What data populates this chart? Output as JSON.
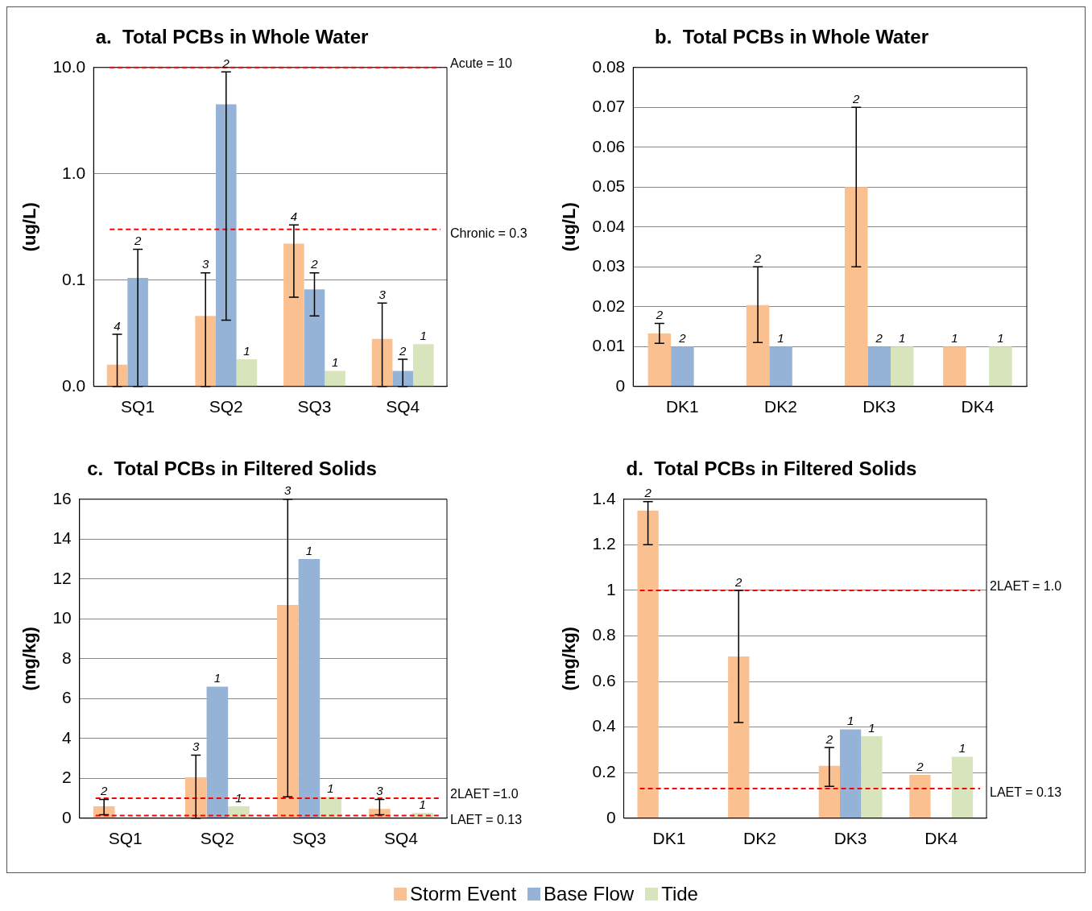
{
  "chart_data": [
    {
      "type": "bar",
      "title": "a.  Total PCBs in Whole Water",
      "ylabel": "(ug/L)",
      "categories": [
        "SQ1",
        "SQ2",
        "SQ3",
        "SQ4"
      ],
      "log": "y",
      "ylim": [
        0.01,
        10
      ],
      "yticks": [
        {
          "value": 0.01,
          "label": "0.0"
        },
        {
          "value": 0.1,
          "label": "0.1"
        },
        {
          "value": 1,
          "label": "1.0"
        },
        {
          "value": 10,
          "label": "10.0"
        }
      ],
      "grid": "y",
      "series": [
        {
          "color": "#fac090",
          "values": [
            0.016,
            0.046,
            0.22,
            0.028
          ],
          "errors": [
            [
              0.01,
              0.031
            ],
            [
              0.01,
              0.117
            ],
            [
              0.069,
              0.33
            ],
            [
              0.01,
              0.061
            ]
          ]
        },
        {
          "color": "#95b3d7",
          "values": [
            0.105,
            4.5,
            0.082,
            0.014
          ],
          "errors": [
            [
              0.01,
              0.195
            ],
            [
              0.042,
              9.1
            ],
            [
              0.046,
              0.117
            ],
            [
              0.01,
              0.018
            ]
          ]
        },
        {
          "color": "#d7e4bc",
          "values": [
            null,
            0.018,
            0.014,
            0.025
          ]
        }
      ],
      "annotations": [
        "4",
        "2",
        "3",
        "2",
        "1",
        "4",
        "2",
        "1",
        "3",
        "2",
        "1"
      ],
      "ref_lines": [
        {
          "axis": "y",
          "value": 10,
          "label": "Acute = 10",
          "color": "#ff0000",
          "line_style": "dashed"
        },
        {
          "axis": "y",
          "value": 0.3,
          "label": "Chronic = 0.3",
          "color": "#ff0000",
          "line_style": "dashed"
        }
      ]
    },
    {
      "type": "bar",
      "title": "b.  Total PCBs in Whole Water",
      "ylabel": "(ug/L)",
      "categories": [
        "DK1",
        "DK2",
        "DK3",
        "DK4"
      ],
      "ylim": [
        0,
        0.08
      ],
      "yticks": [
        0,
        0.01,
        0.02,
        0.03,
        0.04,
        0.05,
        0.06,
        0.07,
        0.08
      ],
      "grid": "y",
      "series": [
        {
          "color": "#fac090",
          "values": [
            0.0133,
            0.0204,
            0.05,
            0.01
          ],
          "errors": [
            [
              0.0108,
              0.0158
            ],
            [
              0.011,
              0.03
            ],
            [
              0.03,
              0.07
            ],
            null
          ]
        },
        {
          "color": "#95b3d7",
          "values": [
            0.01,
            0.01,
            0.01,
            null
          ]
        },
        {
          "color": "#d7e4bc",
          "values": [
            null,
            null,
            0.01,
            0.01
          ]
        }
      ],
      "annotations": [
        "2",
        "2",
        "2",
        "1",
        "2",
        "2",
        "1",
        "1",
        "1"
      ]
    },
    {
      "type": "bar",
      "title": "c.  Total PCBs in Filtered Solids",
      "ylabel": "(mg/kg)",
      "categories": [
        "SQ1",
        "SQ2",
        "SQ3",
        "SQ4"
      ],
      "ylim": [
        0,
        16
      ],
      "yticks": [
        0,
        2,
        4,
        6,
        8,
        10,
        12,
        14,
        16
      ],
      "grid": "y",
      "series": [
        {
          "color": "#fac090",
          "values": [
            0.6,
            2.05,
            10.7,
            0.47
          ],
          "errors": [
            [
              0.17,
              0.94
            ],
            [
              0,
              3.16
            ],
            [
              1.07,
              16
            ],
            [
              0.17,
              0.94
            ]
          ]
        },
        {
          "color": "#95b3d7",
          "values": [
            null,
            6.6,
            13,
            null
          ]
        },
        {
          "color": "#d7e4bc",
          "values": [
            null,
            0.6,
            1.07,
            0.26
          ]
        }
      ],
      "annotations": [
        "2",
        "3",
        "1",
        "1",
        "3",
        "1",
        "1",
        "3",
        "1"
      ],
      "ref_lines": [
        {
          "axis": "y",
          "value": 1,
          "label": "2LAET =1.0",
          "color": "#ff0000",
          "line_style": "dashed"
        },
        {
          "axis": "y",
          "value": 0.13,
          "label": "LAET = 0.13",
          "color": "#ff0000",
          "line_style": "dashed"
        }
      ]
    },
    {
      "type": "bar",
      "title": "d.  Total PCBs in Filtered Solids",
      "ylabel": "(mg/kg)",
      "categories": [
        "DK1",
        "DK2",
        "DK3",
        "DK4"
      ],
      "ylim": [
        0,
        1.4
      ],
      "yticks": [
        0,
        0.2,
        0.4,
        0.6,
        0.8,
        1,
        1.2,
        1.4
      ],
      "grid": "y",
      "legend": "bottom",
      "series": [
        {
          "name": "Storm Event",
          "color": "#fac090",
          "values": [
            1.35,
            0.71,
            0.23,
            0.19
          ],
          "errors": [
            [
              1.2,
              1.39
            ],
            [
              0.42,
              1
            ],
            [
              0.14,
              0.31
            ],
            null
          ]
        },
        {
          "name": "Base Flow",
          "color": "#95b3d7",
          "values": [
            null,
            null,
            0.39,
            null
          ]
        },
        {
          "name": "Tide",
          "color": "#d7e4bc",
          "values": [
            null,
            null,
            0.36,
            0.27
          ]
        }
      ],
      "annotations": [
        "2",
        "2",
        "2",
        "1",
        "1",
        "2",
        "1"
      ],
      "ref_lines": [
        {
          "axis": "y",
          "value": 1,
          "label": "2LAET = 1.0",
          "color": "#ff0000",
          "line_style": "dashed"
        },
        {
          "axis": "y",
          "value": 0.13,
          "label": "LAET = 0.13",
          "color": "#ff0000",
          "line_style": "dashed"
        }
      ]
    }
  ]
}
